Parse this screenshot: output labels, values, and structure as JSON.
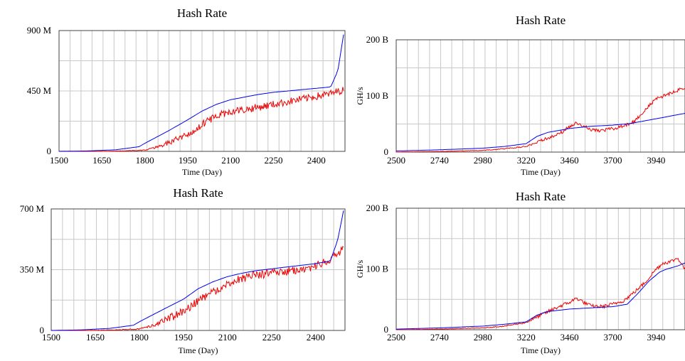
{
  "chart_data": [
    {
      "type": "line",
      "title": "Hash Rate",
      "xlabel": "Time (Day)",
      "ylabel": "",
      "xlim": [
        1500,
        2500
      ],
      "ylim": [
        0,
        900
      ],
      "x_ticks": [
        1500,
        1650,
        1800,
        1950,
        2100,
        2250,
        2400
      ],
      "y_ticks": [
        {
          "v": 0,
          "label": "0"
        },
        {
          "v": 450,
          "label": "450 M"
        },
        {
          "v": 900,
          "label": "900 M"
        }
      ],
      "grid": true,
      "colors": {
        "series_a": "#0000ee",
        "series_b": "#ee0000"
      },
      "series": [
        {
          "color": "#0000ee",
          "noise": 0,
          "x": [
            1500,
            1600,
            1700,
            1780,
            1800,
            1880,
            1950,
            2000,
            2050,
            2100,
            2150,
            2200,
            2250,
            2300,
            2350,
            2400,
            2450,
            2475,
            2495
          ],
          "y": [
            0,
            3,
            12,
            35,
            60,
            150,
            235,
            300,
            350,
            385,
            405,
            425,
            440,
            450,
            460,
            470,
            480,
            600,
            870
          ]
        },
        {
          "color": "#ee0000",
          "noise": 28,
          "x": [
            1500,
            1600,
            1700,
            1800,
            1850,
            1900,
            1950,
            2000,
            2050,
            2100,
            2150,
            2200,
            2250,
            2300,
            2350,
            2400,
            2450,
            2495
          ],
          "y": [
            0,
            0,
            2,
            8,
            35,
            80,
            130,
            200,
            260,
            300,
            310,
            330,
            350,
            370,
            390,
            410,
            430,
            460
          ]
        }
      ]
    },
    {
      "type": "line",
      "title": "Hash Rate",
      "xlabel": "Time (Day)",
      "ylabel": "GH/s",
      "xlim": [
        2500,
        4100
      ],
      "ylim": [
        0,
        200
      ],
      "x_ticks": [
        2500,
        2740,
        2980,
        3220,
        3460,
        3700,
        3940
      ],
      "y_ticks": [
        {
          "v": 0,
          "label": "0"
        },
        {
          "v": 100,
          "label": "100 B"
        },
        {
          "v": 200,
          "label": "200 B"
        }
      ],
      "grid": true,
      "colors": {
        "series_a": "#0000ee",
        "series_b": "#ee0000"
      },
      "series": [
        {
          "color": "#0000ee",
          "noise": 0,
          "x": [
            2500,
            2740,
            2980,
            3100,
            3220,
            3280,
            3340,
            3460,
            3580,
            3700,
            3800,
            3900,
            4000,
            4100
          ],
          "y": [
            2,
            4,
            7,
            10,
            15,
            28,
            35,
            42,
            46,
            48,
            51,
            57,
            63,
            69
          ]
        },
        {
          "color": "#ee0000",
          "noise": 3,
          "x": [
            2500,
            2740,
            2980,
            3100,
            3220,
            3300,
            3400,
            3460,
            3500,
            3540,
            3580,
            3640,
            3700,
            3760,
            3820,
            3880,
            3940,
            3980,
            4020,
            4060,
            4100
          ],
          "y": [
            0,
            1,
            3,
            6,
            10,
            20,
            32,
            45,
            52,
            46,
            40,
            38,
            42,
            46,
            55,
            75,
            95,
            100,
            105,
            110,
            115
          ]
        }
      ]
    },
    {
      "type": "line",
      "title": "Hash Rate",
      "xlabel": "Time (Day)",
      "ylabel": "",
      "xlim": [
        1500,
        2500
      ],
      "ylim": [
        0,
        700
      ],
      "x_ticks": [
        1500,
        1650,
        1800,
        1950,
        2100,
        2250,
        2400
      ],
      "y_ticks": [
        {
          "v": 0,
          "label": "0"
        },
        {
          "v": 350,
          "label": "350 M"
        },
        {
          "v": 700,
          "label": "700 M"
        }
      ],
      "grid": true,
      "colors": {
        "series_a": "#0000ee",
        "series_b": "#ee0000"
      },
      "series": [
        {
          "color": "#0000ee",
          "noise": 0,
          "x": [
            1500,
            1600,
            1700,
            1780,
            1800,
            1880,
            1950,
            2000,
            2050,
            2100,
            2150,
            2200,
            2250,
            2300,
            2350,
            2400,
            2450,
            2475,
            2495
          ],
          "y": [
            0,
            3,
            12,
            30,
            50,
            120,
            180,
            240,
            280,
            310,
            330,
            345,
            355,
            365,
            375,
            385,
            400,
            520,
            690
          ]
        },
        {
          "color": "#ee0000",
          "noise": 24,
          "x": [
            1500,
            1600,
            1700,
            1800,
            1850,
            1900,
            1950,
            2000,
            2050,
            2100,
            2150,
            2200,
            2250,
            2300,
            2350,
            2400,
            2450,
            2495
          ],
          "y": [
            0,
            0,
            2,
            8,
            30,
            70,
            110,
            170,
            220,
            270,
            300,
            320,
            330,
            340,
            350,
            370,
            410,
            470
          ]
        }
      ]
    },
    {
      "type": "line",
      "title": "Hash Rate",
      "xlabel": "Time (Day)",
      "ylabel": "GH/s",
      "xlim": [
        2500,
        4100
      ],
      "ylim": [
        0,
        200
      ],
      "x_ticks": [
        2500,
        2740,
        2980,
        3220,
        3460,
        3700,
        3940
      ],
      "y_ticks": [
        {
          "v": 0,
          "label": "0"
        },
        {
          "v": 100,
          "label": "100 B"
        },
        {
          "v": 200,
          "label": "200 B"
        }
      ],
      "grid": true,
      "colors": {
        "series_a": "#0000ee",
        "series_b": "#ee0000"
      },
      "series": [
        {
          "color": "#0000ee",
          "noise": 0,
          "x": [
            2500,
            2740,
            2980,
            3100,
            3220,
            3280,
            3340,
            3460,
            3580,
            3700,
            3780,
            3840,
            3900,
            3960,
            4000,
            4060,
            4100
          ],
          "y": [
            1,
            3,
            6,
            9,
            13,
            24,
            30,
            34,
            36,
            38,
            42,
            60,
            80,
            95,
            100,
            105,
            110
          ]
        },
        {
          "color": "#ee0000",
          "noise": 3,
          "x": [
            2500,
            2740,
            2980,
            3100,
            3220,
            3300,
            3400,
            3460,
            3500,
            3540,
            3580,
            3640,
            3700,
            3760,
            3820,
            3880,
            3940,
            3980,
            4020,
            4060,
            4100
          ],
          "y": [
            0,
            1,
            3,
            6,
            12,
            24,
            38,
            45,
            52,
            45,
            39,
            38,
            42,
            48,
            62,
            78,
            100,
            110,
            112,
            118,
            100
          ]
        }
      ]
    }
  ]
}
